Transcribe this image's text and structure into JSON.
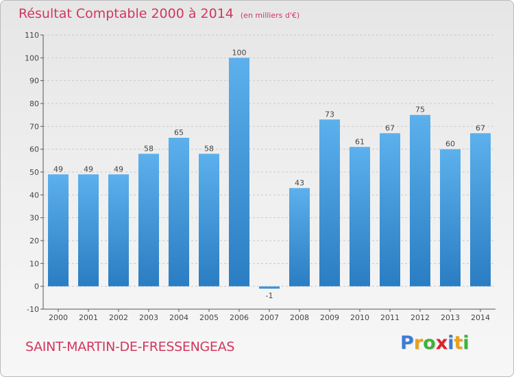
{
  "title": {
    "main": "Résultat Comptable 2000 à 2014",
    "sub": "(en milliers d'€)"
  },
  "commune": "SAINT-MARTIN-DE-FRESSENGEAS",
  "brand": {
    "letters": [
      "P",
      "r",
      "o",
      "x",
      "i",
      "t",
      "i"
    ],
    "colors": [
      "#3b7bd6",
      "#e9a11a",
      "#3fb23a",
      "#d8242a",
      "#3b7bd6",
      "#e9a11a",
      "#3fb23a"
    ]
  },
  "colors": {
    "bar_top": "#5cb0ec",
    "bar_bottom": "#2a7dc2",
    "axis": "#555555",
    "grid": "#c9c9c9",
    "text": "#444444",
    "accent": "#d2365f"
  },
  "chart_data": {
    "type": "bar",
    "categories": [
      "2000",
      "2001",
      "2002",
      "2003",
      "2004",
      "2005",
      "2006",
      "2007",
      "2008",
      "2009",
      "2010",
      "2011",
      "2012",
      "2013",
      "2014"
    ],
    "values": [
      49,
      49,
      49,
      58,
      65,
      58,
      100,
      -1,
      43,
      73,
      61,
      67,
      75,
      60,
      67
    ],
    "data_labels": [
      "49",
      "49",
      "49",
      "58",
      "65",
      "58",
      "100",
      "-1",
      "43",
      "73",
      "61",
      "67",
      "75",
      "60",
      "67"
    ],
    "ylim": [
      -10,
      110
    ],
    "yticks": [
      -10,
      0,
      10,
      20,
      30,
      40,
      50,
      60,
      70,
      80,
      90,
      100,
      110
    ],
    "grid": true,
    "xlabel": "",
    "ylabel": ""
  }
}
